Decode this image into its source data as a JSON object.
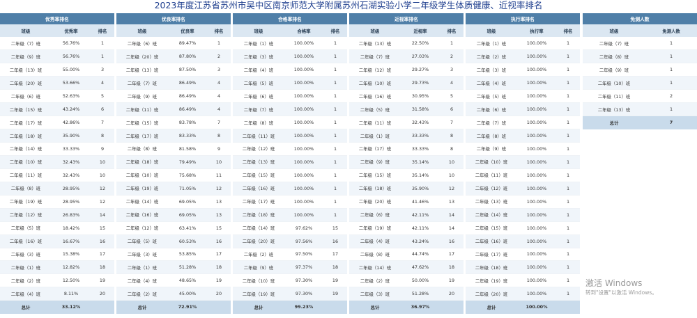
{
  "title": "2023年度江苏省苏州市吴中区南京师范大学附属苏州石湖实验小学二年级学生体质健康、近视率排名",
  "col_class": "班级",
  "col_rank": "排名",
  "panels": [
    {
      "title": "优秀率排名",
      "value_label": "优秀率",
      "rows": [
        [
          "二年级（7）班",
          "56.76%",
          "1"
        ],
        [
          "二年级（9）班",
          "56.76%",
          "1"
        ],
        [
          "二年级（13）班",
          "55.00%",
          "3"
        ],
        [
          "二年级（20）班",
          "53.66%",
          "4"
        ],
        [
          "二年级（6）班",
          "52.63%",
          "5"
        ],
        [
          "二年级（15）班",
          "43.24%",
          "6"
        ],
        [
          "二年级（17）班",
          "42.86%",
          "7"
        ],
        [
          "二年级（18）班",
          "35.90%",
          "8"
        ],
        [
          "二年级（14）班",
          "33.33%",
          "9"
        ],
        [
          "二年级（10）班",
          "32.43%",
          "10"
        ],
        [
          "二年级（11）班",
          "32.43%",
          "10"
        ],
        [
          "二年级（8）班",
          "28.95%",
          "12"
        ],
        [
          "二年级（19）班",
          "28.95%",
          "12"
        ],
        [
          "二年级（12）班",
          "26.83%",
          "14"
        ],
        [
          "二年级（5）班",
          "18.42%",
          "15"
        ],
        [
          "二年级（16）班",
          "16.67%",
          "16"
        ],
        [
          "二年级（3）班",
          "15.38%",
          "17"
        ],
        [
          "二年级（1）班",
          "12.82%",
          "18"
        ],
        [
          "二年级（2）班",
          "12.50%",
          "19"
        ],
        [
          "二年级（4）班",
          "8.11%",
          "20"
        ]
      ],
      "total_label": "总计",
      "total_value": "33.12%"
    },
    {
      "title": "优良率排名",
      "value_label": "优良率",
      "rows": [
        [
          "二年级（6）班",
          "89.47%",
          "1"
        ],
        [
          "二年级（20）班",
          "87.80%",
          "2"
        ],
        [
          "二年级（13）班",
          "87.50%",
          "3"
        ],
        [
          "二年级（7）班",
          "86.49%",
          "4"
        ],
        [
          "二年级（9）班",
          "86.49%",
          "4"
        ],
        [
          "二年级（11）班",
          "86.49%",
          "4"
        ],
        [
          "二年级（15）班",
          "83.78%",
          "7"
        ],
        [
          "二年级（17）班",
          "83.33%",
          "8"
        ],
        [
          "二年级（8）班",
          "81.58%",
          "9"
        ],
        [
          "二年级（18）班",
          "79.49%",
          "10"
        ],
        [
          "二年级（10）班",
          "75.68%",
          "11"
        ],
        [
          "二年级（19）班",
          "71.05%",
          "12"
        ],
        [
          "二年级（14）班",
          "69.05%",
          "13"
        ],
        [
          "二年级（16）班",
          "69.05%",
          "13"
        ],
        [
          "二年级（12）班",
          "63.41%",
          "15"
        ],
        [
          "二年级（5）班",
          "60.53%",
          "16"
        ],
        [
          "二年级（3）班",
          "53.85%",
          "17"
        ],
        [
          "二年级（1）班",
          "51.28%",
          "18"
        ],
        [
          "二年级（4）班",
          "48.65%",
          "19"
        ],
        [
          "二年级（2）班",
          "45.00%",
          "20"
        ]
      ],
      "total_label": "总计",
      "total_value": "72.91%"
    },
    {
      "title": "合格率排名",
      "value_label": "合格率",
      "rows": [
        [
          "二年级（1）班",
          "100.00%",
          "1"
        ],
        [
          "二年级（3）班",
          "100.00%",
          "1"
        ],
        [
          "二年级（4）班",
          "100.00%",
          "1"
        ],
        [
          "二年级（5）班",
          "100.00%",
          "1"
        ],
        [
          "二年级（6）班",
          "100.00%",
          "1"
        ],
        [
          "二年级（7）班",
          "100.00%",
          "1"
        ],
        [
          "二年级（8）班",
          "100.00%",
          "1"
        ],
        [
          "二年级（11）班",
          "100.00%",
          "1"
        ],
        [
          "二年级（12）班",
          "100.00%",
          "1"
        ],
        [
          "二年级（13）班",
          "100.00%",
          "1"
        ],
        [
          "二年级（15）班",
          "100.00%",
          "1"
        ],
        [
          "二年级（16）班",
          "100.00%",
          "1"
        ],
        [
          "二年级（17）班",
          "100.00%",
          "1"
        ],
        [
          "二年级（18）班",
          "100.00%",
          "1"
        ],
        [
          "二年级（14）班",
          "97.62%",
          "15"
        ],
        [
          "二年级（20）班",
          "97.56%",
          "16"
        ],
        [
          "二年级（2）班",
          "97.50%",
          "17"
        ],
        [
          "二年级（9）班",
          "97.37%",
          "18"
        ],
        [
          "二年级（10）班",
          "97.30%",
          "19"
        ],
        [
          "二年级（19）班",
          "97.30%",
          "19"
        ]
      ],
      "total_label": "总计",
      "total_value": "99.23%"
    },
    {
      "title": "近视率排名",
      "value_label": "近视率",
      "rows": [
        [
          "二年级（13）班",
          "22.50%",
          "1"
        ],
        [
          "二年级（7）班",
          "27.03%",
          "2"
        ],
        [
          "二年级（12）班",
          "29.27%",
          "3"
        ],
        [
          "二年级（10）班",
          "29.73%",
          "4"
        ],
        [
          "二年级（16）班",
          "30.95%",
          "5"
        ],
        [
          "二年级（5）班",
          "31.58%",
          "6"
        ],
        [
          "二年级（11）班",
          "32.43%",
          "7"
        ],
        [
          "二年级（1）班",
          "33.33%",
          "8"
        ],
        [
          "二年级（17）班",
          "33.33%",
          "8"
        ],
        [
          "二年级（9）班",
          "35.14%",
          "10"
        ],
        [
          "二年级（15）班",
          "35.14%",
          "10"
        ],
        [
          "二年级（18）班",
          "35.90%",
          "12"
        ],
        [
          "二年级（20）班",
          "41.46%",
          "13"
        ],
        [
          "二年级（6）班",
          "42.11%",
          "14"
        ],
        [
          "二年级（19）班",
          "42.11%",
          "14"
        ],
        [
          "二年级（4）班",
          "43.24%",
          "16"
        ],
        [
          "二年级（8）班",
          "44.74%",
          "17"
        ],
        [
          "二年级（14）班",
          "47.62%",
          "18"
        ],
        [
          "二年级（2）班",
          "50.00%",
          "19"
        ],
        [
          "二年级（3）班",
          "51.28%",
          "20"
        ]
      ],
      "total_label": "总计",
      "total_value": "36.97%"
    },
    {
      "title": "执行率排名",
      "value_label": "执行率",
      "rows": [
        [
          "二年级（1）班",
          "100.00%",
          "1"
        ],
        [
          "二年级（2）班",
          "100.00%",
          "1"
        ],
        [
          "二年级（3）班",
          "100.00%",
          "1"
        ],
        [
          "二年级（4）班",
          "100.00%",
          "1"
        ],
        [
          "二年级（5）班",
          "100.00%",
          "1"
        ],
        [
          "二年级（6）班",
          "100.00%",
          "1"
        ],
        [
          "二年级（7）班",
          "100.00%",
          "1"
        ],
        [
          "二年级（8）班",
          "100.00%",
          "1"
        ],
        [
          "二年级（9）班",
          "100.00%",
          "1"
        ],
        [
          "二年级（10）班",
          "100.00%",
          "1"
        ],
        [
          "二年级（11）班",
          "100.00%",
          "1"
        ],
        [
          "二年级（12）班",
          "100.00%",
          "1"
        ],
        [
          "二年级（13）班",
          "100.00%",
          "1"
        ],
        [
          "二年级（14）班",
          "100.00%",
          "1"
        ],
        [
          "二年级（15）班",
          "100.00%",
          "1"
        ],
        [
          "二年级（16）班",
          "100.00%",
          "1"
        ],
        [
          "二年级（17）班",
          "100.00%",
          "1"
        ],
        [
          "二年级（18）班",
          "100.00%",
          "1"
        ],
        [
          "二年级（19）班",
          "100.00%",
          "1"
        ],
        [
          "二年级（20）班",
          "100.00%",
          "1"
        ]
      ],
      "total_label": "总计",
      "total_value": "100.00%"
    }
  ],
  "exempt": {
    "title": "免测人数",
    "col_class": "班级",
    "col_value": "免测人数",
    "rows": [
      [
        "二年级（7）班",
        "1"
      ],
      [
        "二年级（8）班",
        "1"
      ],
      [
        "二年级（9）班",
        "1"
      ],
      [
        "二年级（10）班",
        "1"
      ],
      [
        "二年级（11）班",
        "2"
      ],
      [
        "二年级（13）班",
        "1"
      ]
    ],
    "total_label": "总计",
    "total_value": "7"
  },
  "watermark": {
    "line1": "激活 Windows",
    "line2": "转到\"设置\"以激活 Windows。"
  }
}
